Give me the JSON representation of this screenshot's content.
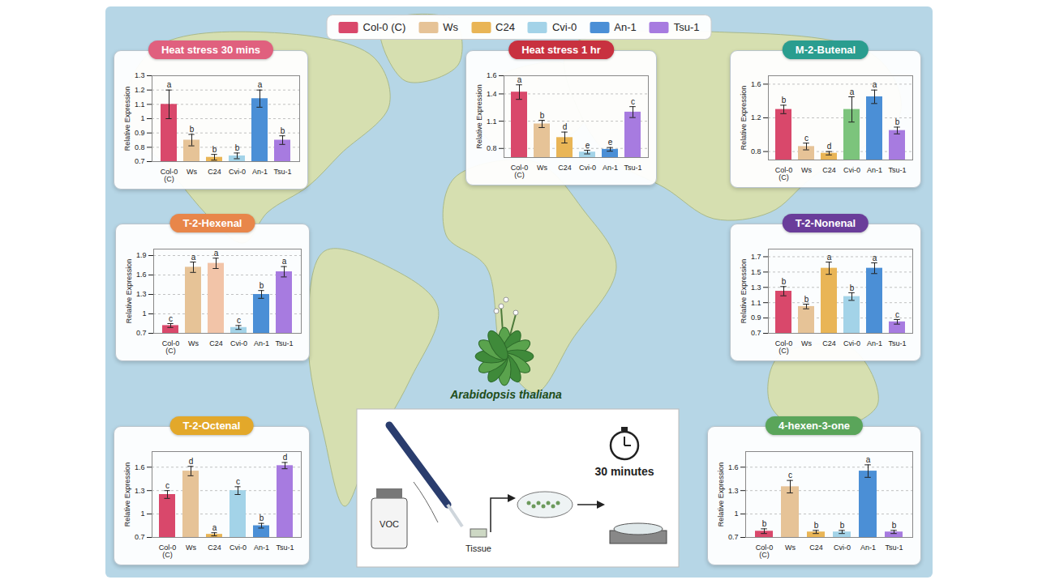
{
  "legend": {
    "position": "top",
    "items": [
      {
        "name": "Col-0 (C)",
        "color": "#d9486b"
      },
      {
        "name": "Ws",
        "color": "#e6c397"
      },
      {
        "name": "C24",
        "color": "#e9b556"
      },
      {
        "name": "Cvi-0",
        "color": "#a3d3e8"
      },
      {
        "name": "An-1",
        "color": "#4b8fd6"
      },
      {
        "name": "Tsu-1",
        "color": "#a77be0"
      }
    ]
  },
  "chart_data": [
    {
      "type": "bar",
      "title": "Heat stress 30 mins",
      "ylabel": "Relative Expression",
      "categories": [
        "Col-0 (C)",
        "Ws",
        "C24",
        "Cvi-0",
        "An-1",
        "Tsu-1"
      ],
      "values": [
        1.1,
        0.85,
        0.73,
        0.74,
        1.14,
        0.85
      ],
      "errors": [
        0.1,
        0.04,
        0.02,
        0.02,
        0.06,
        0.03
      ],
      "letters": [
        "a",
        "b",
        "b",
        "b",
        "a",
        "b"
      ],
      "colors": [
        "#d9486b",
        "#e6c397",
        "#e9b556",
        "#a3d3e8",
        "#4b8fd6",
        "#a77be0"
      ],
      "ylim": [
        0.7,
        1.3
      ],
      "yticks": [
        0.7,
        0.8,
        0.9,
        1,
        1.1,
        1.2,
        1.3
      ],
      "grid": true
    },
    {
      "type": "bar",
      "title": "Heat stress 1 hr",
      "ylabel": "Relative Expression",
      "categories": [
        "Col-0 (C)",
        "Ws",
        "C24",
        "Cvi-0",
        "An-1",
        "Tsu-1"
      ],
      "values": [
        1.42,
        1.07,
        0.92,
        0.76,
        0.79,
        1.2
      ],
      "errors": [
        0.08,
        0.04,
        0.06,
        0.02,
        0.02,
        0.06
      ],
      "letters": [
        "a",
        "b",
        "d",
        "e",
        "e",
        "c"
      ],
      "colors": [
        "#d9486b",
        "#e6c397",
        "#e9b556",
        "#a3d3e8",
        "#4b8fd6",
        "#a77be0"
      ],
      "ylim": [
        0.7,
        1.6
      ],
      "yticks": [
        0.8,
        1.1,
        1.4,
        1.6
      ],
      "grid": true
    },
    {
      "type": "bar",
      "title": "M-2-Butenal",
      "ylabel": "Relative Expression",
      "categories": [
        "Col-0 (C)",
        "Ws",
        "C24",
        "Cvi-0",
        "An-1",
        "Tsu-1"
      ],
      "values": [
        1.3,
        0.86,
        0.78,
        1.3,
        1.45,
        1.05
      ],
      "errors": [
        0.05,
        0.04,
        0.02,
        0.15,
        0.08,
        0.04
      ],
      "letters": [
        "b",
        "c",
        "d",
        "a",
        "a",
        "b"
      ],
      "colors": [
        "#d9486b",
        "#e6c397",
        "#e9b556",
        "#7cc47c",
        "#4b8fd6",
        "#a77be0"
      ],
      "ylim": [
        0.7,
        1.7
      ],
      "yticks": [
        0.8,
        1.2,
        1.6
      ],
      "grid": true
    },
    {
      "type": "bar",
      "title": "T-2-Hexenal",
      "ylabel": "Relative Expression",
      "categories": [
        "Col-0 (C)",
        "Ws",
        "C24",
        "Cvi-0",
        "An-1",
        "Tsu-1"
      ],
      "values": [
        0.82,
        1.72,
        1.78,
        0.79,
        1.3,
        1.65
      ],
      "errors": [
        0.03,
        0.08,
        0.08,
        0.03,
        0.06,
        0.08
      ],
      "letters": [
        "c",
        "a",
        "a",
        "c",
        "b",
        "a"
      ],
      "colors": [
        "#d9486b",
        "#e6c397",
        "#f2c4a8",
        "#a3d3e8",
        "#4b8fd6",
        "#a77be0"
      ],
      "ylim": [
        0.7,
        2.0
      ],
      "yticks": [
        0.7,
        1,
        1.3,
        1.6,
        1.9
      ],
      "grid": true
    },
    {
      "type": "bar",
      "title": "T-2-Nonenal",
      "ylabel": "Relative Expression",
      "categories": [
        "Col-0 (C)",
        "Ws",
        "C24",
        "Cvi-0",
        "An-1",
        "Tsu-1"
      ],
      "values": [
        1.25,
        1.05,
        1.55,
        1.18,
        1.55,
        0.85
      ],
      "errors": [
        0.06,
        0.03,
        0.08,
        0.05,
        0.07,
        0.03
      ],
      "letters": [
        "b",
        "b",
        "a",
        "b",
        "a",
        "c"
      ],
      "colors": [
        "#d9486b",
        "#e6c397",
        "#e9b556",
        "#a3d3e8",
        "#4b8fd6",
        "#a77be0"
      ],
      "ylim": [
        0.7,
        1.8
      ],
      "yticks": [
        0.7,
        0.9,
        1.1,
        1.3,
        1.5,
        1.7
      ],
      "grid": true
    },
    {
      "type": "bar",
      "title": "T-2-Octenal",
      "ylabel": "Relative Expression",
      "categories": [
        "Col-0 (C)",
        "Ws",
        "C24",
        "Cvi-0",
        "An-1",
        "Tsu-1"
      ],
      "values": [
        1.25,
        1.55,
        0.74,
        1.3,
        0.85,
        1.62
      ],
      "errors": [
        0.05,
        0.06,
        0.02,
        0.05,
        0.03,
        0.04
      ],
      "letters": [
        "c",
        "d",
        "a",
        "c",
        "b",
        "d"
      ],
      "colors": [
        "#d9486b",
        "#e6c397",
        "#e9b556",
        "#a3d3e8",
        "#4b8fd6",
        "#a77be0"
      ],
      "ylim": [
        0.7,
        1.8
      ],
      "yticks": [
        0.7,
        1,
        1.3,
        1.6
      ],
      "grid": true
    },
    {
      "type": "bar",
      "title": "4-hexen-3-one",
      "ylabel": "Relative Expression",
      "categories": [
        "Col-0 (C)",
        "Ws",
        "C24",
        "Cvi-0",
        "An-1",
        "Tsu-1"
      ],
      "values": [
        0.78,
        1.35,
        0.77,
        0.77,
        1.55,
        0.77
      ],
      "errors": [
        0.03,
        0.08,
        0.02,
        0.02,
        0.08,
        0.02
      ],
      "letters": [
        "b",
        "c",
        "b",
        "b",
        "a",
        "b"
      ],
      "colors": [
        "#d9486b",
        "#e6c397",
        "#e9b556",
        "#a3d3e8",
        "#4b8fd6",
        "#a77be0"
      ],
      "ylim": [
        0.7,
        1.8
      ],
      "yticks": [
        0.7,
        1,
        1.3,
        1.6
      ],
      "grid": true
    }
  ],
  "center_label": "Arabidopsis thaliana",
  "method": {
    "vial": "VOC",
    "tissue": "Tissue",
    "timer": "30 minutes"
  }
}
